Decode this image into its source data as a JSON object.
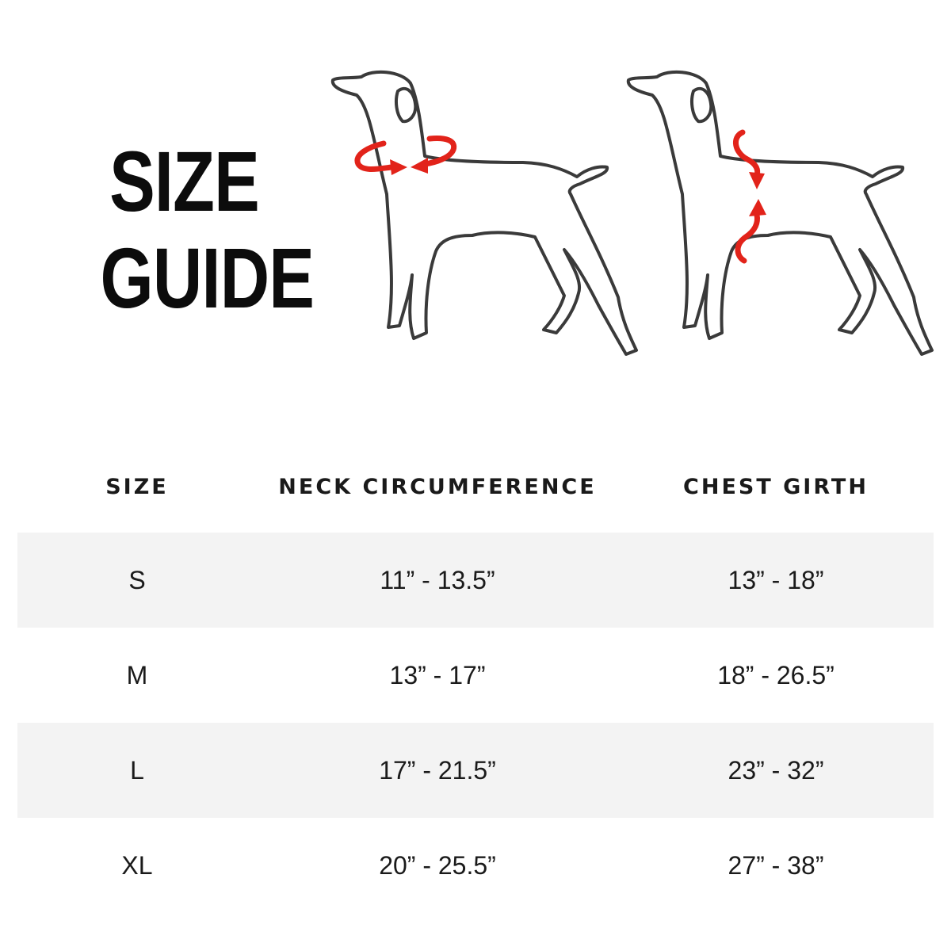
{
  "title": {
    "line1": "SIZE",
    "line2": "GUIDE"
  },
  "illustrations": [
    {
      "icon": "dog-neck-measurement-icon",
      "measure": "neck"
    },
    {
      "icon": "dog-chest-measurement-icon",
      "measure": "chest"
    }
  ],
  "colors": {
    "accent": "#e2231a",
    "outline": "#3a3a3a",
    "row_shade": "#f3f3f3"
  },
  "table": {
    "headers": [
      "SIZE",
      "NECK CIRCUMFERENCE",
      "CHEST GIRTH"
    ],
    "rows": [
      {
        "size": "S",
        "neck": "11” - 13.5”",
        "chest": "13” - 18”"
      },
      {
        "size": "M",
        "neck": "13” - 17”",
        "chest": "18” - 26.5”"
      },
      {
        "size": "L",
        "neck": "17” - 21.5”",
        "chest": "23” - 32”"
      },
      {
        "size": "XL",
        "neck": "20” - 25.5”",
        "chest": "27” - 38”"
      }
    ]
  }
}
